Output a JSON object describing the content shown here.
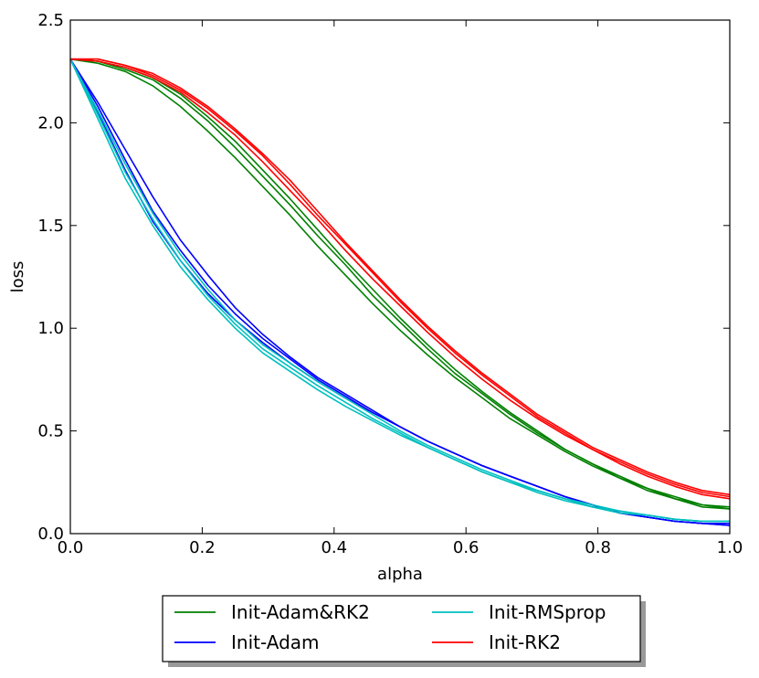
{
  "chart_data": {
    "type": "line",
    "title": "",
    "xlabel": "alpha",
    "ylabel": "loss",
    "xlim": [
      0.0,
      1.0
    ],
    "ylim": [
      0.0,
      2.5
    ],
    "xticks": [
      "0.0",
      "0.2",
      "0.4",
      "0.6",
      "0.8",
      "1.0"
    ],
    "yticks": [
      "0.0",
      "0.5",
      "1.0",
      "1.5",
      "2.0",
      "2.5"
    ],
    "x": [
      0.0,
      0.0417,
      0.0833,
      0.125,
      0.1667,
      0.2083,
      0.25,
      0.2917,
      0.3333,
      0.375,
      0.4167,
      0.4583,
      0.5,
      0.5417,
      0.5833,
      0.625,
      0.6667,
      0.7083,
      0.75,
      0.7917,
      0.8333,
      0.875,
      0.9167,
      0.9583,
      1.0
    ],
    "grid": false,
    "legend_position": "below",
    "series": [
      {
        "name": "Init-Adam&RK2",
        "color": "#008000",
        "show_in_legend": true,
        "values": [
          2.31,
          2.29,
          2.25,
          2.18,
          2.08,
          1.96,
          1.83,
          1.69,
          1.55,
          1.4,
          1.26,
          1.12,
          0.99,
          0.87,
          0.76,
          0.66,
          0.56,
          0.48,
          0.4,
          0.33,
          0.27,
          0.21,
          0.17,
          0.13,
          0.12
        ]
      },
      {
        "name": "Init-Adam&RK2",
        "color": "#008000",
        "show_in_legend": false,
        "values": [
          2.31,
          2.3,
          2.26,
          2.21,
          2.12,
          2.01,
          1.88,
          1.74,
          1.6,
          1.45,
          1.31,
          1.16,
          1.03,
          0.9,
          0.78,
          0.68,
          0.58,
          0.49,
          0.41,
          0.34,
          0.27,
          0.22,
          0.17,
          0.14,
          0.12
        ]
      },
      {
        "name": "Init-Adam&RK2",
        "color": "#008000",
        "show_in_legend": false,
        "values": [
          2.31,
          2.3,
          2.27,
          2.22,
          2.14,
          2.03,
          1.91,
          1.77,
          1.63,
          1.48,
          1.33,
          1.19,
          1.05,
          0.92,
          0.8,
          0.69,
          0.59,
          0.5,
          0.41,
          0.34,
          0.28,
          0.22,
          0.18,
          0.14,
          0.13
        ]
      },
      {
        "name": "Init-Adam",
        "color": "#0000ff",
        "show_in_legend": true,
        "values": [
          2.31,
          2.05,
          1.77,
          1.52,
          1.33,
          1.17,
          1.04,
          0.93,
          0.83,
          0.74,
          0.66,
          0.59,
          0.52,
          0.45,
          0.39,
          0.33,
          0.28,
          0.23,
          0.18,
          0.14,
          0.1,
          0.08,
          0.06,
          0.05,
          0.04
        ]
      },
      {
        "name": "Init-Adam",
        "color": "#0000ff",
        "show_in_legend": false,
        "values": [
          2.31,
          2.08,
          1.82,
          1.57,
          1.38,
          1.21,
          1.07,
          0.95,
          0.85,
          0.75,
          0.67,
          0.59,
          0.52,
          0.45,
          0.39,
          0.33,
          0.28,
          0.23,
          0.18,
          0.14,
          0.1,
          0.08,
          0.06,
          0.05,
          0.05
        ]
      },
      {
        "name": "Init-Adam",
        "color": "#0000ff",
        "show_in_legend": false,
        "values": [
          2.31,
          2.1,
          1.87,
          1.64,
          1.43,
          1.26,
          1.1,
          0.97,
          0.86,
          0.76,
          0.68,
          0.6,
          0.52,
          0.45,
          0.39,
          0.33,
          0.28,
          0.23,
          0.18,
          0.14,
          0.1,
          0.08,
          0.06,
          0.05,
          0.04
        ]
      },
      {
        "name": "Init-RMSprop",
        "color": "#00bfbf",
        "show_in_legend": true,
        "values": [
          2.31,
          2.02,
          1.73,
          1.5,
          1.3,
          1.14,
          1.0,
          0.88,
          0.79,
          0.7,
          0.62,
          0.55,
          0.48,
          0.42,
          0.36,
          0.3,
          0.25,
          0.2,
          0.16,
          0.13,
          0.1,
          0.09,
          0.07,
          0.06,
          0.06
        ]
      },
      {
        "name": "Init-RMSprop",
        "color": "#00bfbf",
        "show_in_legend": false,
        "values": [
          2.31,
          2.04,
          1.76,
          1.53,
          1.33,
          1.16,
          1.02,
          0.9,
          0.81,
          0.72,
          0.64,
          0.56,
          0.49,
          0.42,
          0.36,
          0.3,
          0.25,
          0.21,
          0.17,
          0.13,
          0.11,
          0.09,
          0.07,
          0.06,
          0.06
        ]
      },
      {
        "name": "Init-RMSprop",
        "color": "#00bfbf",
        "show_in_legend": false,
        "values": [
          2.31,
          2.06,
          1.8,
          1.56,
          1.36,
          1.19,
          1.04,
          0.92,
          0.83,
          0.74,
          0.66,
          0.58,
          0.5,
          0.43,
          0.37,
          0.31,
          0.26,
          0.21,
          0.17,
          0.14,
          0.11,
          0.09,
          0.07,
          0.06,
          0.06
        ]
      },
      {
        "name": "Init-RK2",
        "color": "#ff0000",
        "show_in_legend": true,
        "values": [
          2.31,
          2.3,
          2.27,
          2.22,
          2.15,
          2.05,
          1.94,
          1.81,
          1.67,
          1.53,
          1.38,
          1.24,
          1.11,
          0.98,
          0.86,
          0.75,
          0.65,
          0.56,
          0.48,
          0.41,
          0.34,
          0.28,
          0.23,
          0.19,
          0.17
        ]
      },
      {
        "name": "Init-RK2",
        "color": "#ff0000",
        "show_in_legend": false,
        "values": [
          2.31,
          2.31,
          2.28,
          2.23,
          2.16,
          2.07,
          1.96,
          1.84,
          1.7,
          1.55,
          1.41,
          1.27,
          1.13,
          1.0,
          0.88,
          0.77,
          0.67,
          0.57,
          0.49,
          0.41,
          0.35,
          0.29,
          0.24,
          0.2,
          0.18
        ]
      },
      {
        "name": "Init-RK2",
        "color": "#ff0000",
        "show_in_legend": false,
        "values": [
          2.31,
          2.31,
          2.28,
          2.24,
          2.17,
          2.08,
          1.97,
          1.85,
          1.72,
          1.57,
          1.42,
          1.28,
          1.14,
          1.01,
          0.89,
          0.78,
          0.68,
          0.58,
          0.5,
          0.42,
          0.36,
          0.3,
          0.25,
          0.21,
          0.19
        ]
      }
    ],
    "legend": [
      {
        "label": "Init-Adam&RK2",
        "color": "#008000"
      },
      {
        "label": "Init-RMSprop",
        "color": "#00bfbf"
      },
      {
        "label": "Init-Adam",
        "color": "#0000ff"
      },
      {
        "label": "Init-RK2",
        "color": "#ff0000"
      }
    ]
  }
}
